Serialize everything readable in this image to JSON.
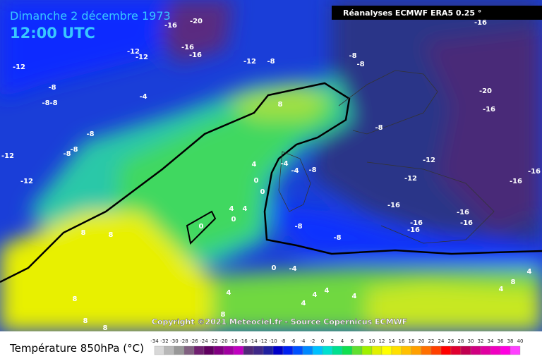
{
  "header": {
    "title": "Dimanche 2 décembre 1973",
    "time": "12:00 UTC",
    "source": "Réanalyses ECMWF ERA5 0.25 °"
  },
  "footer": {
    "copyright": "Copyright ©2021 Meteociel.fr - Source Copernicus ECMWF",
    "legend_title": "Température 850hPa (°C)"
  },
  "scale": {
    "labels": [
      -34,
      -32,
      -30,
      -28,
      -26,
      -24,
      -22,
      -20,
      -18,
      -16,
      -14,
      -12,
      -10,
      -8,
      -6,
      -4,
      -2,
      0,
      2,
      4,
      6,
      8,
      10,
      12,
      14,
      16,
      18,
      20,
      22,
      24,
      26,
      28,
      30,
      32,
      34,
      36,
      38,
      40
    ]
  },
  "map_labels": [
    "-20",
    "-16",
    "-16",
    "-16",
    "-12",
    "-12",
    "-12",
    "-8",
    "-8",
    "-8",
    "-4",
    "-8",
    "-8",
    "-8",
    "-12",
    "-12",
    "-12",
    "-8",
    "-8",
    "-8",
    "8",
    "4",
    "0",
    "0",
    "-4",
    "-4",
    "-8",
    "-8",
    "-12",
    "-12",
    "-16",
    "-16",
    "-16",
    "-16",
    "-16",
    "-20",
    "-16",
    "-16",
    "-16",
    "-16",
    "4",
    "4",
    "0",
    "0",
    "-8",
    "-8",
    "8",
    "8",
    "-4",
    "4",
    "4",
    "4",
    "4",
    "4",
    "4",
    "4",
    "8",
    "8",
    "8",
    "8",
    "8",
    "0"
  ]
}
